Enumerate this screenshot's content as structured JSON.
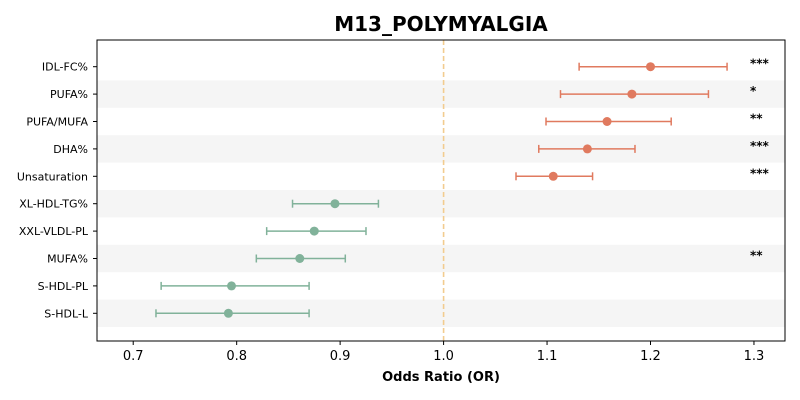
{
  "chart_data": {
    "type": "forest",
    "title": "M13_POLYMYALGIA",
    "xlabel": "Odds Ratio (OR)",
    "xlim": [
      0.665,
      1.33
    ],
    "xticks": [
      0.7,
      0.8,
      0.9,
      1.0,
      1.1,
      1.2,
      1.3
    ],
    "xtick_labels": [
      "0.7",
      "0.8",
      "0.9",
      "1.0",
      "1.1",
      "1.2",
      "1.3"
    ],
    "reference_line": 1.0,
    "colors": {
      "positive": "#e07a5f",
      "negative": "#81b29a",
      "reference": "#f2cc8f",
      "stripe": "#f5f5f5"
    },
    "rows": [
      {
        "label": "IDL-FC%",
        "or": 1.2,
        "lower": 1.131,
        "upper": 1.274,
        "sig": "***"
      },
      {
        "label": "PUFA%",
        "or": 1.182,
        "lower": 1.113,
        "upper": 1.256,
        "sig": "*"
      },
      {
        "label": "PUFA/MUFA",
        "or": 1.158,
        "lower": 1.099,
        "upper": 1.22,
        "sig": "**"
      },
      {
        "label": "DHA%",
        "or": 1.139,
        "lower": 1.092,
        "upper": 1.185,
        "sig": "***"
      },
      {
        "label": "Unsaturation",
        "or": 1.106,
        "lower": 1.07,
        "upper": 1.144,
        "sig": "***"
      },
      {
        "label": "XL-HDL-TG%",
        "or": 0.895,
        "lower": 0.854,
        "upper": 0.937,
        "sig": ""
      },
      {
        "label": "XXL-VLDL-PL",
        "or": 0.875,
        "lower": 0.829,
        "upper": 0.925,
        "sig": ""
      },
      {
        "label": "MUFA%",
        "or": 0.861,
        "lower": 0.819,
        "upper": 0.905,
        "sig": "**"
      },
      {
        "label": "S-HDL-PL",
        "or": 0.795,
        "lower": 0.727,
        "upper": 0.87,
        "sig": ""
      },
      {
        "label": "S-HDL-L",
        "or": 0.792,
        "lower": 0.722,
        "upper": 0.87,
        "sig": ""
      }
    ]
  }
}
